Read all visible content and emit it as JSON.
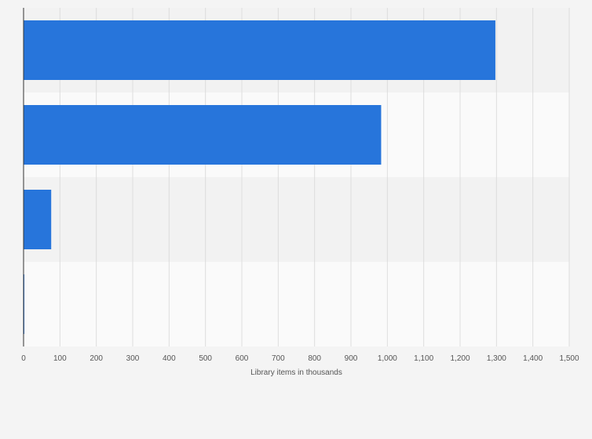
{
  "chart_data": {
    "type": "bar",
    "orientation": "horizontal",
    "categories": [
      "",
      "",
      "",
      ""
    ],
    "values": [
      1297,
      983,
      76,
      2
    ],
    "title": "",
    "xlabel": "Library items in thousands",
    "ylabel": "",
    "xlim": [
      0,
      1500
    ],
    "xticks": [
      0,
      100,
      200,
      300,
      400,
      500,
      600,
      700,
      800,
      900,
      1000,
      1100,
      1200,
      1300,
      1400,
      1500
    ],
    "xtick_labels": [
      "0",
      "100",
      "200",
      "300",
      "400",
      "500",
      "600",
      "700",
      "800",
      "900",
      "1,000",
      "1,100",
      "1,200",
      "1,300",
      "1,400",
      "1,500"
    ],
    "grid": true,
    "legend": "none",
    "bar_color": "#2775db",
    "band_colors": [
      "#f2f2f2",
      "#fafafa"
    ],
    "gridline_color": "#dddddd",
    "axis_color": "#333333"
  }
}
